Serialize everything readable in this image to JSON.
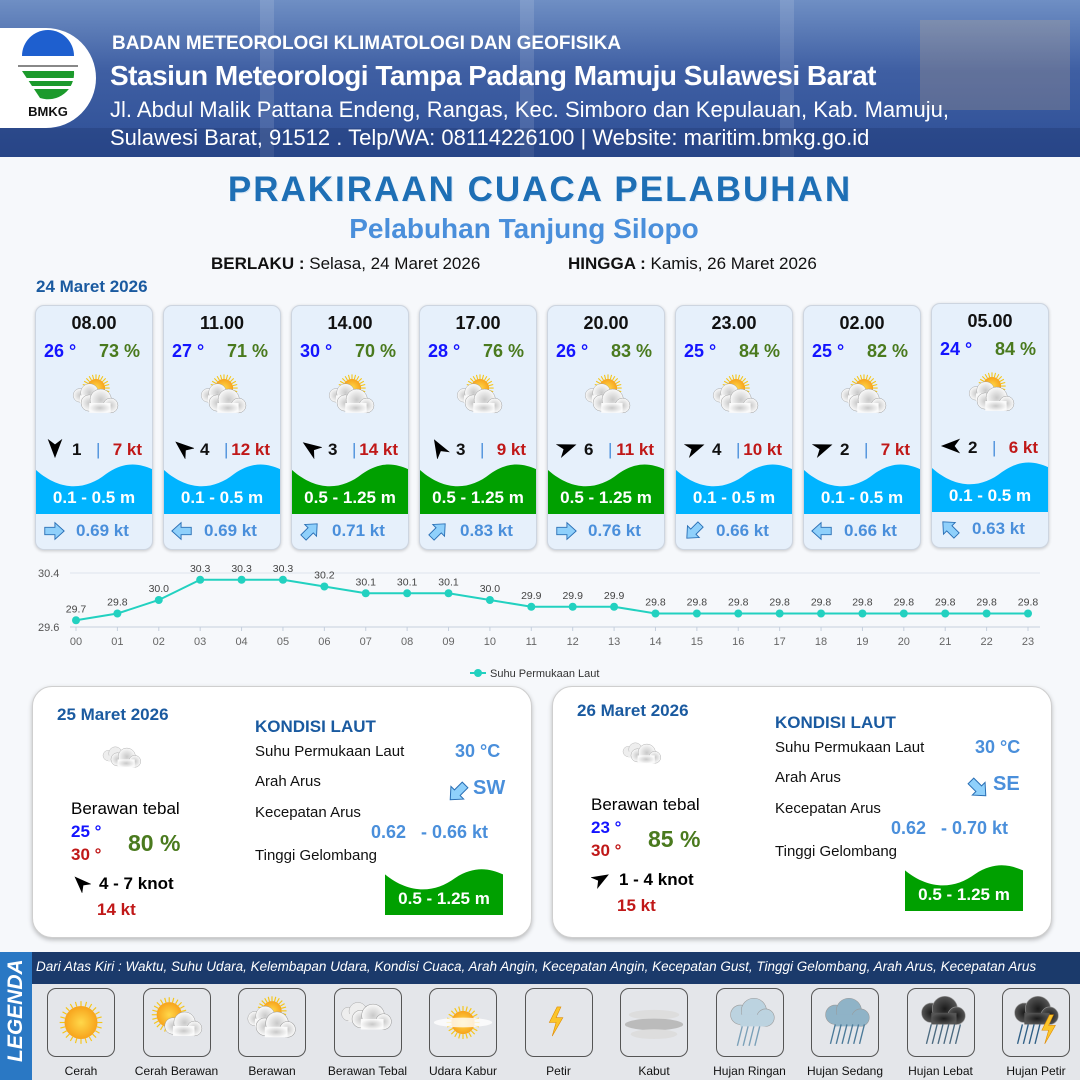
{
  "header": {
    "logo_text": "BMKG",
    "agency": "BADAN METEOROLOGI KLIMATOLOGI DAN GEOFISIKA",
    "station": "Stasiun Meteorologi Tampa Padang Mamuju Sulawesi Barat",
    "address_line1": "Jl. Abdul Malik Pattana Endeng, Rangas, Kec. Simboro dan Kepulauan, Kab. Mamuju,",
    "address_line2": "Sulawesi Barat, 91512 . Telp/WA: 08114226100 | Website: maritim.bmkg.go.id"
  },
  "title": "PRAKIRAAN CUACA PELABUHAN",
  "subtitle": "Pelabuhan Tanjung Silopo",
  "validity": {
    "from_label": "BERLAKU :",
    "from_value": "Selasa, 24 Maret 2026",
    "to_label": "HINGGA :",
    "to_value": "Kamis, 26 Maret 2026"
  },
  "day1": {
    "date": "24 Maret 2026",
    "cards": [
      {
        "time": "08.00",
        "temp": "26 °",
        "humidity": "73 %",
        "weather": "Cerah Berawan",
        "wind_dir_deg": 180,
        "wind_speed": "1",
        "gust": "7 kt",
        "wave": "0.1 - 0.5 m",
        "wave_color": "#00b4ff",
        "current_dir_deg": 90,
        "current_speed": "0.69 kt"
      },
      {
        "time": "11.00",
        "temp": "27 °",
        "humidity": "71 %",
        "weather": "Cerah Berawan",
        "wind_dir_deg": 310,
        "wind_speed": "4",
        "gust": "12 kt",
        "wave": "0.1 - 0.5 m",
        "wave_color": "#00b4ff",
        "current_dir_deg": 270,
        "current_speed": "0.69 kt"
      },
      {
        "time": "14.00",
        "temp": "30 °",
        "humidity": "70 %",
        "weather": "Cerah Berawan",
        "wind_dir_deg": 305,
        "wind_speed": "3",
        "gust": "14 kt",
        "wave": "0.5 - 1.25 m",
        "wave_color": "#00a000",
        "current_dir_deg": 45,
        "current_speed": "0.71 kt"
      },
      {
        "time": "17.00",
        "temp": "28 °",
        "humidity": "76 %",
        "weather": "Cerah Berawan",
        "wind_dir_deg": 330,
        "wind_speed": "3",
        "gust": "9 kt",
        "wave": "0.5 - 1.25 m",
        "wave_color": "#00a000",
        "current_dir_deg": 45,
        "current_speed": "0.83 kt"
      },
      {
        "time": "20.00",
        "temp": "26 °",
        "humidity": "83 %",
        "weather": "Cerah Berawan",
        "wind_dir_deg": 70,
        "wind_speed": "6",
        "gust": "11 kt",
        "wave": "0.5 - 1.25 m",
        "wave_color": "#00a000",
        "current_dir_deg": 90,
        "current_speed": "0.76 kt"
      },
      {
        "time": "23.00",
        "temp": "25 °",
        "humidity": "84 %",
        "weather": "Cerah Berawan",
        "wind_dir_deg": 70,
        "wind_speed": "4",
        "gust": "10 kt",
        "wave": "0.1 - 0.5 m",
        "wave_color": "#00b4ff",
        "current_dir_deg": 225,
        "current_speed": "0.66 kt"
      },
      {
        "time": "02.00",
        "temp": "25 °",
        "humidity": "82 %",
        "weather": "Cerah Berawan",
        "wind_dir_deg": 70,
        "wind_speed": "2",
        "gust": "7 kt",
        "wave": "0.1 - 0.5 m",
        "wave_color": "#00b4ff",
        "current_dir_deg": 270,
        "current_speed": "0.66 kt"
      },
      {
        "time": "05.00",
        "temp": "24 °",
        "humidity": "84 %",
        "weather": "Cerah Berawan",
        "wind_dir_deg": 270,
        "wind_speed": "2",
        "gust": "6 kt",
        "wave": "0.1 - 0.5 m",
        "wave_color": "#00b4ff",
        "current_dir_deg": 315,
        "current_speed": "0.63 kt"
      }
    ]
  },
  "chart_data": {
    "type": "line",
    "categories": [
      "00",
      "01",
      "02",
      "03",
      "04",
      "05",
      "06",
      "07",
      "08",
      "09",
      "10",
      "11",
      "12",
      "13",
      "14",
      "15",
      "16",
      "17",
      "18",
      "19",
      "20",
      "21",
      "22",
      "23"
    ],
    "series": [
      {
        "name": "Suhu Permukaan Laut",
        "values": [
          29.7,
          29.8,
          30.0,
          30.3,
          30.3,
          30.3,
          30.2,
          30.1,
          30.1,
          30.1,
          30.0,
          29.9,
          29.9,
          29.9,
          29.8,
          29.8,
          29.8,
          29.8,
          29.8,
          29.8,
          29.8,
          29.8,
          29.8,
          29.8
        ],
        "color": "#22d1c0"
      }
    ],
    "yticks": [
      "30.4",
      "29.6"
    ],
    "ylim": [
      29.6,
      30.4
    ],
    "grid": true,
    "legend": "bottom-right"
  },
  "day_boxes": [
    {
      "date": "25 Maret 2026",
      "weather": "Berawan tebal",
      "temp_min": "25 °",
      "temp_max": "30 °",
      "humidity": "80 %",
      "wind_dir_deg": 315,
      "wind": "4  - 7 knot",
      "gust": "14 kt",
      "sea_title": "KONDISI LAUT",
      "sst_label": "Suhu Permukaan Laut",
      "sst": "30 °C",
      "cur_dir_label": "Arah Arus",
      "cur_dir": "SW",
      "cur_dir_deg": 225,
      "cur_speed_label": "Kecepatan Arus",
      "cur_min": "0.62",
      "cur_max": "- 0.66 kt",
      "wave_label": "Tinggi Gelombang",
      "wave": "0.5 - 1.25 m",
      "wave_color": "#00a000"
    },
    {
      "date": "26 Maret 2026",
      "weather": "Berawan tebal",
      "temp_min": "23 °",
      "temp_max": "30 °",
      "humidity": "85 %",
      "wind_dir_deg": 60,
      "wind": "1  - 4 knot",
      "gust": "15 kt",
      "sea_title": "KONDISI LAUT",
      "sst_label": "Suhu Permukaan Laut",
      "sst": "30 °C",
      "cur_dir_label": "Arah Arus",
      "cur_dir": "SE",
      "cur_dir_deg": 135,
      "cur_speed_label": "Kecepatan Arus",
      "cur_min": "0.62",
      "cur_max": "- 0.70 kt",
      "wave_label": "Tinggi Gelombang",
      "wave": "0.5 - 1.25 m",
      "wave_color": "#00a000"
    }
  ],
  "legend": {
    "title": "LEGENDA",
    "description": "Dari Atas Kiri : Waktu, Suhu Udara, Kelembapan Udara, Kondisi Cuaca, Arah Angin, Kecepatan Angin, Kecepatan Gust, Tinggi Gelombang, Arah Arus, Kecepatan Arus",
    "items": [
      {
        "label": "Cerah",
        "icon": "sun"
      },
      {
        "label": "Cerah Berawan",
        "icon": "sun-cloud"
      },
      {
        "label": "Berawan",
        "icon": "cloudy"
      },
      {
        "label": "Berawan Tebal",
        "icon": "overcast"
      },
      {
        "label": "Udara Kabur",
        "icon": "haze"
      },
      {
        "label": "Petir",
        "icon": "lightning"
      },
      {
        "label": "Kabut",
        "icon": "fog"
      },
      {
        "label": "Hujan Ringan",
        "icon": "light-rain"
      },
      {
        "label": "Hujan Sedang",
        "icon": "moderate-rain"
      },
      {
        "label": "Hujan Lebat",
        "icon": "heavy-rain"
      },
      {
        "label": "Hujan Petir",
        "icon": "thunderstorm"
      }
    ]
  }
}
